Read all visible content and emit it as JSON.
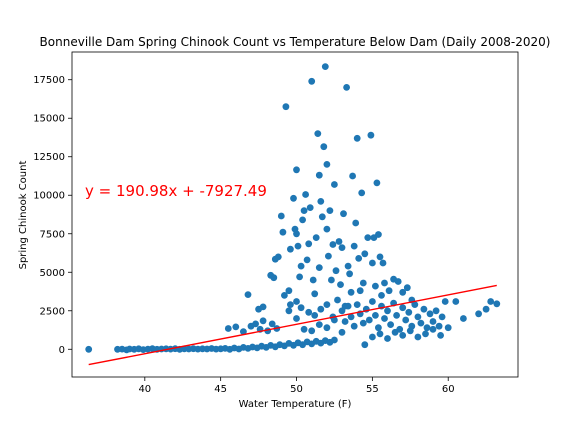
{
  "chart_data": {
    "type": "scatter",
    "title": "Bonneville Dam Spring Chinook Count vs Temperature Below Dam (Daily 2008-2020)",
    "xlabel": "Water Temperature (F)",
    "ylabel": "Spring Chinook Count",
    "xlim": [
      35.2,
      64.6
    ],
    "ylim": [
      -1800,
      19300
    ],
    "x_ticks": [
      40,
      45,
      50,
      55,
      60
    ],
    "y_ticks": [
      0,
      2500,
      5000,
      7500,
      10000,
      12500,
      15000,
      17500
    ],
    "grid": false,
    "point_color": "#1f77b4",
    "regression": {
      "slope": 190.98,
      "intercept": -7927.49,
      "x_range": [
        36.3,
        63.2
      ],
      "color": "#ff0000",
      "equation_label": "y = 190.98x + -7927.49"
    },
    "series": [
      {
        "points": [
          [
            36.3,
            0
          ],
          [
            38.2,
            0
          ],
          [
            38.5,
            10
          ],
          [
            38.8,
            -40
          ],
          [
            39.0,
            20
          ],
          [
            39.3,
            0
          ],
          [
            39.6,
            30
          ],
          [
            39.9,
            -20
          ],
          [
            40.2,
            10
          ],
          [
            40.5,
            40
          ],
          [
            40.8,
            0
          ],
          [
            41.1,
            20
          ],
          [
            41.4,
            30
          ],
          [
            41.7,
            10
          ],
          [
            42.0,
            40
          ],
          [
            42.3,
            0
          ],
          [
            42.6,
            30
          ],
          [
            42.9,
            20
          ],
          [
            43.2,
            40
          ],
          [
            43.5,
            10
          ],
          [
            43.8,
            30
          ],
          [
            44.1,
            20
          ],
          [
            44.4,
            50
          ],
          [
            44.7,
            10
          ],
          [
            45.0,
            30
          ],
          [
            45.3,
            60
          ],
          [
            45.6,
            0
          ],
          [
            45.9,
            80
          ],
          [
            46.2,
            20
          ],
          [
            46.5,
            120
          ],
          [
            46.8,
            60
          ],
          [
            47.1,
            150
          ],
          [
            47.4,
            90
          ],
          [
            47.7,
            200
          ],
          [
            48.0,
            120
          ],
          [
            48.3,
            250
          ],
          [
            48.6,
            160
          ],
          [
            48.9,
            300
          ],
          [
            49.2,
            220
          ],
          [
            49.5,
            380
          ],
          [
            49.8,
            260
          ],
          [
            50.1,
            420
          ],
          [
            50.4,
            300
          ],
          [
            50.7,
            480
          ],
          [
            51.0,
            350
          ],
          [
            51.3,
            520
          ],
          [
            51.6,
            400
          ],
          [
            51.9,
            560
          ],
          [
            52.2,
            450
          ],
          [
            52.5,
            600
          ],
          [
            45.5,
            1350
          ],
          [
            46.0,
            1450
          ],
          [
            46.5,
            1150
          ],
          [
            47.0,
            1500
          ],
          [
            47.3,
            1650
          ],
          [
            47.6,
            1300
          ],
          [
            47.8,
            1850
          ],
          [
            48.1,
            1200
          ],
          [
            48.4,
            1650
          ],
          [
            48.7,
            1350
          ],
          [
            46.8,
            3550
          ],
          [
            47.5,
            2600
          ],
          [
            47.8,
            2750
          ],
          [
            48.3,
            4800
          ],
          [
            48.6,
            5850
          ],
          [
            48.8,
            6000
          ],
          [
            48.5,
            4650
          ],
          [
            49.0,
            8650
          ],
          [
            49.1,
            7600
          ],
          [
            49.3,
            15750
          ],
          [
            49.5,
            3800
          ],
          [
            49.6,
            6500
          ],
          [
            49.8,
            9800
          ],
          [
            49.9,
            7800
          ],
          [
            50.0,
            7500
          ],
          [
            50.0,
            11650
          ],
          [
            50.1,
            6700
          ],
          [
            50.2,
            4700
          ],
          [
            50.3,
            5400
          ],
          [
            50.4,
            8400
          ],
          [
            50.5,
            9000
          ],
          [
            50.6,
            10050
          ],
          [
            50.7,
            5800
          ],
          [
            50.8,
            6850
          ],
          [
            50.9,
            9200
          ],
          [
            51.0,
            17400
          ],
          [
            51.1,
            4500
          ],
          [
            51.2,
            3600
          ],
          [
            51.3,
            7250
          ],
          [
            51.4,
            14000
          ],
          [
            51.5,
            11300
          ],
          [
            51.5,
            5300
          ],
          [
            51.6,
            9600
          ],
          [
            51.7,
            8600
          ],
          [
            51.8,
            13150
          ],
          [
            51.9,
            18350
          ],
          [
            52.0,
            12000
          ],
          [
            52.0,
            7800
          ],
          [
            52.1,
            6050
          ],
          [
            52.2,
            9000
          ],
          [
            52.3,
            4500
          ],
          [
            52.4,
            6800
          ],
          [
            52.5,
            10700
          ],
          [
            52.6,
            5100
          ],
          [
            52.7,
            3200
          ],
          [
            52.8,
            7000
          ],
          [
            52.9,
            4200
          ],
          [
            53.0,
            6600
          ],
          [
            53.1,
            8800
          ],
          [
            53.2,
            2800
          ],
          [
            53.3,
            17000
          ],
          [
            53.4,
            5400
          ],
          [
            53.5,
            4900
          ],
          [
            53.6,
            3700
          ],
          [
            53.7,
            11250
          ],
          [
            53.8,
            6700
          ],
          [
            53.9,
            8200
          ],
          [
            54.0,
            13700
          ],
          [
            54.1,
            5900
          ],
          [
            54.2,
            3800
          ],
          [
            54.3,
            10150
          ],
          [
            54.4,
            4300
          ],
          [
            54.5,
            6200
          ],
          [
            54.7,
            7250
          ],
          [
            54.9,
            13900
          ],
          [
            55.0,
            5600
          ],
          [
            55.1,
            7250
          ],
          [
            55.2,
            4100
          ],
          [
            55.3,
            10800
          ],
          [
            55.4,
            7450
          ],
          [
            55.5,
            6000
          ],
          [
            55.6,
            3500
          ],
          [
            55.7,
            5600
          ],
          [
            55.8,
            4300
          ],
          [
            56.1,
            3800
          ],
          [
            56.4,
            4550
          ],
          [
            56.7,
            4400
          ],
          [
            57.0,
            3700
          ],
          [
            57.3,
            4000
          ],
          [
            57.6,
            3200
          ],
          [
            53.0,
            2500
          ],
          [
            53.2,
            1800
          ],
          [
            53.4,
            2800
          ],
          [
            53.6,
            2100
          ],
          [
            53.8,
            1500
          ],
          [
            54.0,
            2900
          ],
          [
            54.2,
            2300
          ],
          [
            54.4,
            1700
          ],
          [
            54.6,
            2600
          ],
          [
            54.8,
            1900
          ],
          [
            55.0,
            3100
          ],
          [
            55.2,
            2200
          ],
          [
            55.4,
            1400
          ],
          [
            55.6,
            2800
          ],
          [
            55.8,
            2000
          ],
          [
            56.0,
            2500
          ],
          [
            56.2,
            1600
          ],
          [
            56.4,
            3000
          ],
          [
            56.6,
            2200
          ],
          [
            56.8,
            1300
          ],
          [
            57.0,
            2700
          ],
          [
            57.2,
            1900
          ],
          [
            57.4,
            2400
          ],
          [
            57.6,
            1500
          ],
          [
            57.8,
            2900
          ],
          [
            58.0,
            2100
          ],
          [
            58.2,
            1700
          ],
          [
            58.4,
            2600
          ],
          [
            58.6,
            1400
          ],
          [
            58.8,
            2300
          ],
          [
            59.0,
            1800
          ],
          [
            59.2,
            2500
          ],
          [
            59.4,
            1500
          ],
          [
            59.6,
            2100
          ],
          [
            59.8,
            3100
          ],
          [
            60.0,
            1400
          ],
          [
            60.5,
            3100
          ],
          [
            61.0,
            2000
          ],
          [
            62.0,
            2300
          ],
          [
            62.5,
            2600
          ],
          [
            62.8,
            3100
          ],
          [
            63.2,
            2950
          ],
          [
            55.0,
            800
          ],
          [
            55.5,
            1000
          ],
          [
            56.0,
            700
          ],
          [
            56.5,
            1100
          ],
          [
            57.0,
            900
          ],
          [
            57.5,
            1200
          ],
          [
            58.0,
            800
          ],
          [
            58.5,
            1000
          ],
          [
            59.0,
            1300
          ],
          [
            59.5,
            900
          ],
          [
            50.5,
            1300
          ],
          [
            51.0,
            1200
          ],
          [
            51.5,
            1600
          ],
          [
            52.0,
            1400
          ],
          [
            52.5,
            1900
          ],
          [
            53.0,
            1100
          ],
          [
            50.0,
            2000
          ],
          [
            49.5,
            2500
          ],
          [
            49.2,
            3500
          ],
          [
            49.6,
            2900
          ],
          [
            50.0,
            3100
          ],
          [
            50.3,
            2700
          ],
          [
            50.8,
            2400
          ],
          [
            51.2,
            2200
          ],
          [
            51.6,
            2600
          ],
          [
            52.0,
            2900
          ],
          [
            52.4,
            2100
          ],
          [
            54.5,
            300
          ]
        ]
      }
    ]
  }
}
